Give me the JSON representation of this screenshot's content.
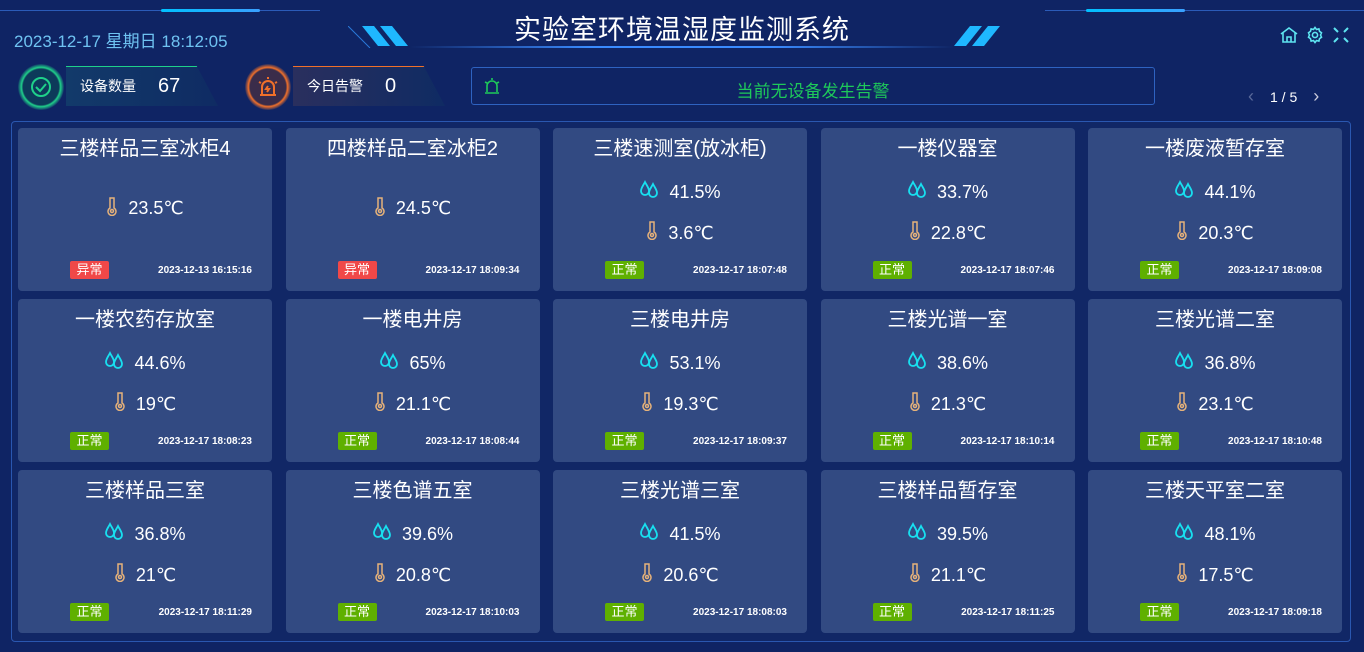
{
  "header": {
    "title": "实验室环境温湿度监测系统",
    "datetime": "2023-12-17 星期日 18:12:05"
  },
  "header_icons": [
    "home-icon",
    "gear-icon",
    "fullscreen-icon"
  ],
  "stats": [
    {
      "label": "设备数量",
      "value": "67",
      "color": "#1fd08a",
      "icon": "check-cycle-icon"
    },
    {
      "label": "今日告警",
      "value": "0",
      "color": "#f0702a",
      "icon": "alarm-light-icon"
    }
  ],
  "alarm_bar": {
    "text": "当前无设备发生告警",
    "icon": "alarm-icon",
    "color": "#1ec95a"
  },
  "pager": {
    "text": "1 / 5",
    "prev": "‹",
    "next": "›"
  },
  "colors": {
    "normal": "#5fb000",
    "abnormal": "#f04848",
    "humidity": "#18e0f0",
    "thermo": "#e6b27a"
  },
  "devices": [
    {
      "name": "三楼样品三室冰柜4",
      "temp": "23.5℃",
      "status": "异常",
      "ok": false,
      "time": "2023-12-13 16:15:16"
    },
    {
      "name": "四楼样品二室冰柜2",
      "temp": "24.5℃",
      "status": "异常",
      "ok": false,
      "time": "2023-12-17 18:09:34"
    },
    {
      "name": "三楼速测室(放冰柜)",
      "humidity": "41.5%",
      "temp": "3.6℃",
      "status": "正常",
      "ok": true,
      "time": "2023-12-17 18:07:48"
    },
    {
      "name": "一楼仪器室",
      "humidity": "33.7%",
      "temp": "22.8℃",
      "status": "正常",
      "ok": true,
      "time": "2023-12-17 18:07:46"
    },
    {
      "name": "一楼废液暂存室",
      "humidity": "44.1%",
      "temp": "20.3℃",
      "status": "正常",
      "ok": true,
      "time": "2023-12-17 18:09:08"
    },
    {
      "name": "一楼农药存放室",
      "humidity": "44.6%",
      "temp": "19℃",
      "status": "正常",
      "ok": true,
      "time": "2023-12-17 18:08:23"
    },
    {
      "name": "一楼电井房",
      "humidity": "65%",
      "temp": "21.1℃",
      "status": "正常",
      "ok": true,
      "time": "2023-12-17 18:08:44"
    },
    {
      "name": "三楼电井房",
      "humidity": "53.1%",
      "temp": "19.3℃",
      "status": "正常",
      "ok": true,
      "time": "2023-12-17 18:09:37"
    },
    {
      "name": "三楼光谱一室",
      "humidity": "38.6%",
      "temp": "21.3℃",
      "status": "正常",
      "ok": true,
      "time": "2023-12-17 18:10:14"
    },
    {
      "name": "三楼光谱二室",
      "humidity": "36.8%",
      "temp": "23.1℃",
      "status": "正常",
      "ok": true,
      "time": "2023-12-17 18:10:48"
    },
    {
      "name": "三楼样品三室",
      "humidity": "36.8%",
      "temp": "21℃",
      "status": "正常",
      "ok": true,
      "time": "2023-12-17 18:11:29"
    },
    {
      "name": "三楼色谱五室",
      "humidity": "39.6%",
      "temp": "20.8℃",
      "status": "正常",
      "ok": true,
      "time": "2023-12-17 18:10:03"
    },
    {
      "name": "三楼光谱三室",
      "humidity": "41.5%",
      "temp": "20.6℃",
      "status": "正常",
      "ok": true,
      "time": "2023-12-17 18:08:03"
    },
    {
      "name": "三楼样品暂存室",
      "humidity": "39.5%",
      "temp": "21.1℃",
      "status": "正常",
      "ok": true,
      "time": "2023-12-17 18:11:25"
    },
    {
      "name": "三楼天平室二室",
      "humidity": "48.1%",
      "temp": "17.5℃",
      "status": "正常",
      "ok": true,
      "time": "2023-12-17 18:09:18"
    }
  ]
}
